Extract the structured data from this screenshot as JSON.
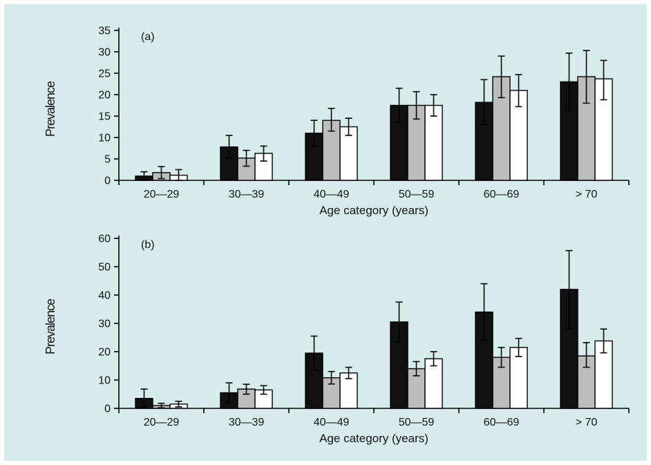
{
  "colors": {
    "background": "#d7ecec",
    "series": [
      "#111111",
      "#bdbdbd",
      "#ffffff"
    ]
  },
  "chart_data": [
    {
      "type": "bar",
      "panel_label": "(a)",
      "categories": [
        "20—29",
        "30—39",
        "40—49",
        "50—59",
        "60—69",
        "> 70"
      ],
      "series": [
        {
          "values": [
            1.0,
            7.8,
            11.0,
            17.5,
            18.2,
            23.0
          ],
          "err_high": [
            2.0,
            10.5,
            14.0,
            21.5,
            23.5,
            29.7
          ],
          "err_low": [
            0.0,
            5.2,
            8.0,
            13.5,
            13.0,
            16.0
          ]
        },
        {
          "values": [
            1.8,
            5.2,
            14.0,
            17.5,
            24.2,
            24.2
          ],
          "err_high": [
            3.2,
            7.0,
            16.8,
            20.7,
            29.0,
            30.3
          ],
          "err_low": [
            0.4,
            3.3,
            11.5,
            14.3,
            19.3,
            18.0
          ]
        },
        {
          "values": [
            1.2,
            6.3,
            12.5,
            17.5,
            21.0,
            23.7
          ],
          "err_high": [
            2.5,
            8.0,
            14.5,
            20.0,
            24.7,
            28.0
          ],
          "err_low": [
            0.0,
            4.5,
            10.5,
            15.0,
            17.2,
            18.8
          ]
        }
      ],
      "xlabel": "Age category (years)",
      "ylabel": "Prevalence",
      "ylim": [
        0,
        35
      ],
      "yticks": [
        0,
        5,
        10,
        15,
        20,
        25,
        30,
        35
      ]
    },
    {
      "type": "bar",
      "panel_label": "(b)",
      "categories": [
        "20—29",
        "30—39",
        "40—49",
        "50—59",
        "60—69",
        "> 70"
      ],
      "series": [
        {
          "values": [
            3.5,
            5.5,
            19.5,
            30.5,
            34.0,
            42.0
          ],
          "err_high": [
            6.8,
            9.0,
            25.5,
            37.5,
            44.0,
            55.7
          ],
          "err_low": [
            0.2,
            2.0,
            13.5,
            23.5,
            24.0,
            28.3
          ]
        },
        {
          "values": [
            1.0,
            6.8,
            10.8,
            14.0,
            18.0,
            18.5
          ],
          "err_high": [
            1.8,
            8.5,
            13.0,
            16.5,
            21.5,
            23.2
          ],
          "err_low": [
            0.2,
            5.0,
            8.6,
            11.5,
            14.5,
            14.5
          ]
        },
        {
          "values": [
            1.5,
            6.5,
            12.5,
            17.5,
            21.5,
            23.8
          ],
          "err_high": [
            2.5,
            8.0,
            14.5,
            20.0,
            24.7,
            28.0
          ],
          "err_low": [
            0.5,
            5.0,
            10.5,
            15.0,
            18.3,
            19.6
          ]
        }
      ],
      "xlabel": "Age category (years)",
      "ylabel": "Prevalence",
      "ylim": [
        0,
        60
      ],
      "yticks": [
        0,
        10,
        20,
        30,
        40,
        50,
        60
      ]
    }
  ]
}
